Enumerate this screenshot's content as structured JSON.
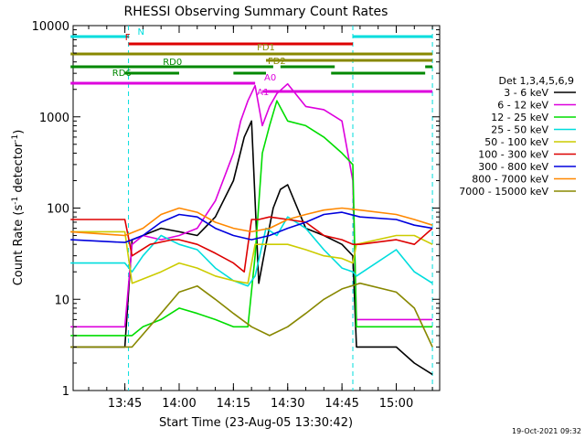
{
  "chart_data": {
    "type": "line",
    "title": "RHESSI Observing Summary Count Rates",
    "xlabel": "Start Time (23-Aug-05 13:30:42)",
    "ylabel": "Count Rate (s",
    "ylabel_sup": "-1",
    "ylabel_tail": " detector",
    "ylabel_sup2": "-1",
    "ylabel_close": ")",
    "yscale": "log",
    "ylim": [
      1,
      10000
    ],
    "xlim": [
      "13:30:42",
      "15:12:00"
    ],
    "x_ticks": [
      "13:45",
      "14:00",
      "14:15",
      "14:30",
      "14:45",
      "15:00"
    ],
    "y_ticks": [
      "1",
      "10",
      "100",
      "1000",
      "10000"
    ],
    "timestamp": "19-Oct-2021 09:32",
    "legend": {
      "title": "Det 1,3,4,5,6,9",
      "placement": "right"
    },
    "series": [
      {
        "name": "3 - 6 keV",
        "color": "#000000",
        "x": [
          "13:30",
          "13:45",
          "13:47",
          "13:55",
          "14:00",
          "14:05",
          "14:10",
          "14:15",
          "14:18",
          "14:20",
          "14:22",
          "14:24",
          "14:26",
          "14:28",
          "14:30",
          "14:35",
          "14:40",
          "14:45",
          "14:48",
          "14:49",
          "15:00",
          "15:05",
          "15:10"
        ],
        "values": [
          3,
          3,
          45,
          60,
          55,
          50,
          80,
          200,
          600,
          900,
          15,
          40,
          100,
          160,
          180,
          60,
          50,
          40,
          30,
          3,
          3,
          2,
          1.5
        ]
      },
      {
        "name": "6 - 12 keV",
        "color": "#dd00dd",
        "x": [
          "13:30",
          "13:45",
          "13:47",
          "13:50",
          "13:55",
          "14:00",
          "14:05",
          "14:10",
          "14:15",
          "14:17",
          "14:19",
          "14:21",
          "14:23",
          "14:25",
          "14:27",
          "14:30",
          "14:35",
          "14:40",
          "14:45",
          "14:48",
          "14:49",
          "15:00",
          "15:05",
          "15:10"
        ],
        "values": [
          5,
          5,
          40,
          50,
          45,
          50,
          60,
          120,
          400,
          900,
          1500,
          2200,
          800,
          1300,
          1800,
          2300,
          1300,
          1200,
          900,
          200,
          6,
          6,
          6,
          6
        ]
      },
      {
        "name": "12 - 25 keV",
        "color": "#00dd00",
        "x": [
          "13:30",
          "13:45",
          "13:47",
          "13:50",
          "13:55",
          "14:00",
          "14:05",
          "14:10",
          "14:15",
          "14:19",
          "14:21",
          "14:23",
          "14:25",
          "14:27",
          "14:30",
          "14:35",
          "14:40",
          "14:45",
          "14:48",
          "14:49",
          "15:00",
          "15:05",
          "15:10"
        ],
        "values": [
          4,
          4,
          4,
          5,
          6,
          8,
          7,
          6,
          5,
          5,
          30,
          400,
          800,
          1500,
          900,
          800,
          600,
          400,
          300,
          5,
          5,
          5,
          5
        ]
      },
      {
        "name": "25 - 50 keV",
        "color": "#00dddd",
        "x": [
          "13:30",
          "13:45",
          "13:47",
          "13:50",
          "13:55",
          "14:00",
          "14:05",
          "14:10",
          "14:15",
          "14:19",
          "14:21",
          "14:24",
          "14:27",
          "14:30",
          "14:35",
          "14:40",
          "14:45",
          "14:48",
          "14:49",
          "15:00",
          "15:05",
          "15:10"
        ],
        "values": [
          25,
          25,
          20,
          30,
          50,
          40,
          35,
          22,
          16,
          14,
          18,
          60,
          50,
          80,
          60,
          35,
          22,
          20,
          18,
          35,
          20,
          15
        ]
      },
      {
        "name": "50 - 100 keV",
        "color": "#cccc00",
        "x": [
          "13:30",
          "13:45",
          "13:47",
          "13:55",
          "14:00",
          "14:05",
          "14:10",
          "14:15",
          "14:19",
          "14:21",
          "14:25",
          "14:30",
          "14:35",
          "14:40",
          "14:45",
          "14:48",
          "14:49",
          "15:00",
          "15:05",
          "15:10"
        ],
        "values": [
          55,
          55,
          15,
          20,
          25,
          22,
          18,
          16,
          15,
          40,
          40,
          40,
          35,
          30,
          28,
          25,
          40,
          50,
          50,
          40
        ]
      },
      {
        "name": "100 - 300 keV",
        "color": "#dd0000",
        "x": [
          "13:30",
          "13:45",
          "13:47",
          "13:52",
          "13:58",
          "14:00",
          "14:05",
          "14:10",
          "14:15",
          "14:18",
          "14:20",
          "14:22",
          "14:25",
          "14:30",
          "14:35",
          "14:40",
          "14:45",
          "14:48",
          "14:50",
          "15:00",
          "15:05",
          "15:10"
        ],
        "values": [
          75,
          75,
          30,
          40,
          45,
          45,
          40,
          32,
          25,
          20,
          75,
          75,
          80,
          75,
          70,
          50,
          45,
          40,
          40,
          45,
          40,
          60
        ]
      },
      {
        "name": "300 - 800 keV",
        "color": "#0000dd",
        "x": [
          "13:30",
          "13:45",
          "13:50",
          "13:55",
          "14:00",
          "14:05",
          "14:10",
          "14:15",
          "14:20",
          "14:25",
          "14:30",
          "14:35",
          "14:40",
          "14:45",
          "14:50",
          "15:00",
          "15:05",
          "15:10"
        ],
        "values": [
          45,
          42,
          50,
          70,
          85,
          80,
          60,
          50,
          45,
          50,
          60,
          70,
          85,
          90,
          80,
          75,
          65,
          60
        ]
      },
      {
        "name": "800 - 7000 keV",
        "color": "#ff8800",
        "x": [
          "13:30",
          "13:45",
          "13:50",
          "13:55",
          "14:00",
          "14:05",
          "14:10",
          "14:15",
          "14:20",
          "14:25",
          "14:30",
          "14:35",
          "14:40",
          "14:45",
          "14:50",
          "15:00",
          "15:05",
          "15:10"
        ],
        "values": [
          55,
          50,
          60,
          85,
          100,
          90,
          70,
          60,
          55,
          60,
          75,
          85,
          95,
          100,
          95,
          85,
          75,
          65
        ]
      },
      {
        "name": "7000 - 15000 keV",
        "color": "#888800",
        "x": [
          "13:30",
          "13:45",
          "13:47",
          "13:55",
          "14:00",
          "14:05",
          "14:10",
          "14:15",
          "14:20",
          "14:25",
          "14:30",
          "14:35",
          "14:40",
          "14:45",
          "14:50",
          "15:00",
          "15:05",
          "15:10"
        ],
        "values": [
          3,
          3,
          3,
          7,
          12,
          14,
          10,
          7,
          5,
          4,
          5,
          7,
          10,
          13,
          15,
          12,
          8,
          3
        ]
      }
    ],
    "flags": [
      {
        "label": "N",
        "color": "#00dddd",
        "segments": [
          [
            "13:30",
            "13:46"
          ],
          [
            "14:48",
            "15:10"
          ]
        ]
      },
      {
        "label": "F",
        "color": "#dd0000",
        "segments": [
          [
            "13:46",
            "14:48"
          ]
        ]
      },
      {
        "label": "FD1",
        "color": "#888800",
        "segments": [
          [
            "13:30",
            "15:10"
          ]
        ]
      },
      {
        "label": "FD2",
        "color": "#888800",
        "segments": [
          [
            "14:24",
            "15:10"
          ]
        ]
      },
      {
        "label": "RD0",
        "color": "#008800",
        "segments": [
          [
            "13:30",
            "14:26"
          ],
          [
            "14:28",
            "14:43"
          ],
          [
            "15:08",
            "15:10"
          ]
        ]
      },
      {
        "label": "RD6",
        "color": "#008800",
        "segments": [
          [
            "13:45",
            "14:00"
          ],
          [
            "14:15",
            "14:24"
          ],
          [
            "14:42",
            "15:08"
          ]
        ]
      },
      {
        "label": "A0",
        "color": "#dd00dd",
        "segments": [
          [
            "13:30",
            "14:21"
          ]
        ]
      },
      {
        "label": "A1",
        "color": "#dd00dd",
        "segments": [
          [
            "14:23",
            "15:10"
          ]
        ]
      }
    ],
    "grid": false
  }
}
